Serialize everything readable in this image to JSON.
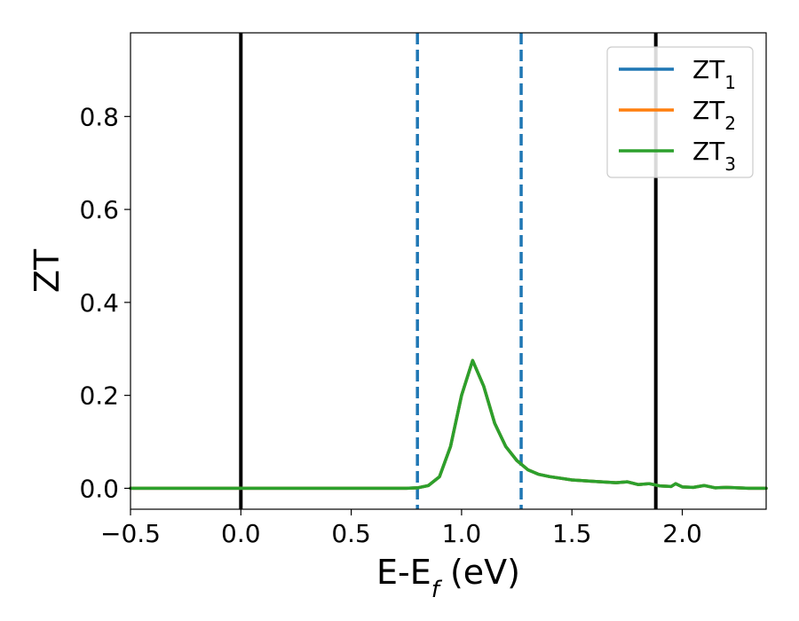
{
  "chart_data": {
    "type": "line",
    "xlabel": {
      "main": "E-E",
      "sub": "f",
      "suffix": " (eV)"
    },
    "ylabel": "ZT",
    "xlim": [
      -0.5,
      2.38
    ],
    "ylim": [
      -0.045,
      0.98
    ],
    "xticks": [
      -0.5,
      0.0,
      0.5,
      1.0,
      1.5,
      2.0
    ],
    "xtick_labels": [
      "−0.5",
      "0.0",
      "0.5",
      "1.0",
      "1.5",
      "2.0"
    ],
    "yticks": [
      0.0,
      0.2,
      0.4,
      0.6,
      0.8
    ],
    "ytick_labels": [
      "0.0",
      "0.2",
      "0.4",
      "0.6",
      "0.8"
    ],
    "grid": false,
    "legend_position": "top-right",
    "vertical_lines": [
      {
        "x": 0.0,
        "style": "solid",
        "color": "#000000"
      },
      {
        "x": 1.88,
        "style": "solid",
        "color": "#000000"
      },
      {
        "x": 0.8,
        "style": "dashed",
        "color": "#1f77b4"
      },
      {
        "x": 1.27,
        "style": "dashed",
        "color": "#1f77b4"
      }
    ],
    "series": [
      {
        "name": "ZT",
        "sub": "1",
        "color": "#1f77b4",
        "x": [
          -0.5,
          0.75,
          0.8,
          0.85,
          0.9,
          0.95,
          1.0,
          1.05,
          1.1,
          1.15,
          1.2,
          1.25,
          1.3,
          1.35,
          1.4,
          1.5,
          1.6,
          1.7,
          1.75,
          1.8,
          1.85,
          1.9,
          1.95,
          1.97,
          2.0,
          2.05,
          2.1,
          2.15,
          2.2,
          2.25,
          2.3,
          2.38
        ],
        "y": [
          0.0,
          0.0,
          0.001,
          0.006,
          0.025,
          0.09,
          0.2,
          0.275,
          0.22,
          0.14,
          0.09,
          0.06,
          0.04,
          0.03,
          0.025,
          0.018,
          0.015,
          0.012,
          0.014,
          0.008,
          0.01,
          0.005,
          0.004,
          0.01,
          0.003,
          0.002,
          0.006,
          0.001,
          0.002,
          0.001,
          0.0,
          0.0
        ]
      },
      {
        "name": "ZT",
        "sub": "2",
        "color": "#ff7f0e",
        "x": [
          -0.5,
          0.75,
          0.8,
          0.85,
          0.9,
          0.95,
          1.0,
          1.05,
          1.1,
          1.15,
          1.2,
          1.25,
          1.3,
          1.35,
          1.4,
          1.5,
          1.6,
          1.7,
          1.75,
          1.8,
          1.85,
          1.9,
          1.95,
          1.97,
          2.0,
          2.05,
          2.1,
          2.15,
          2.2,
          2.25,
          2.3,
          2.38
        ],
        "y": [
          0.0,
          0.0,
          0.001,
          0.006,
          0.025,
          0.09,
          0.2,
          0.275,
          0.22,
          0.14,
          0.09,
          0.06,
          0.04,
          0.03,
          0.025,
          0.018,
          0.015,
          0.012,
          0.014,
          0.008,
          0.01,
          0.005,
          0.004,
          0.01,
          0.003,
          0.002,
          0.006,
          0.001,
          0.002,
          0.001,
          0.0,
          0.0
        ]
      },
      {
        "name": "ZT",
        "sub": "3",
        "color": "#2ca02c",
        "x": [
          -0.5,
          0.75,
          0.8,
          0.85,
          0.9,
          0.95,
          1.0,
          1.05,
          1.1,
          1.15,
          1.2,
          1.25,
          1.3,
          1.35,
          1.4,
          1.5,
          1.6,
          1.7,
          1.75,
          1.8,
          1.85,
          1.9,
          1.95,
          1.97,
          2.0,
          2.05,
          2.1,
          2.15,
          2.2,
          2.25,
          2.3,
          2.38
        ],
        "y": [
          0.0,
          0.0,
          0.001,
          0.006,
          0.025,
          0.09,
          0.2,
          0.275,
          0.22,
          0.14,
          0.09,
          0.06,
          0.04,
          0.03,
          0.025,
          0.018,
          0.015,
          0.012,
          0.014,
          0.008,
          0.01,
          0.005,
          0.004,
          0.01,
          0.003,
          0.002,
          0.006,
          0.001,
          0.002,
          0.001,
          0.0,
          0.0
        ]
      }
    ]
  }
}
